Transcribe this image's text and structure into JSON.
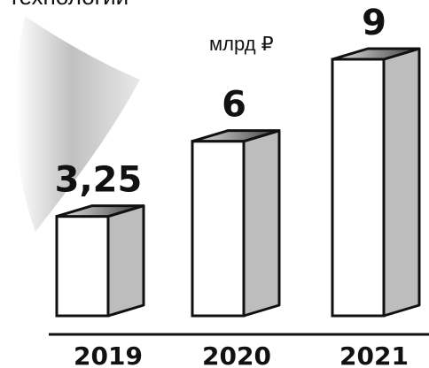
{
  "title_fragment": "технологии",
  "unit_label": "млрд ₽",
  "chart_data": {
    "type": "bar",
    "categories": [
      "2019",
      "2020",
      "2021"
    ],
    "values": [
      3.25,
      6,
      9
    ],
    "value_labels": [
      "3,25",
      "6",
      "9"
    ],
    "ylim": [
      0,
      9
    ],
    "grid": false,
    "style": "3d-columns"
  },
  "colors": {
    "front": "#ffffff",
    "side": "#bdbdbd",
    "top_light": "#e6e6e6",
    "top_dark": "#3e3e3e",
    "outline": "#111111",
    "arc": "#c8c8c8"
  }
}
